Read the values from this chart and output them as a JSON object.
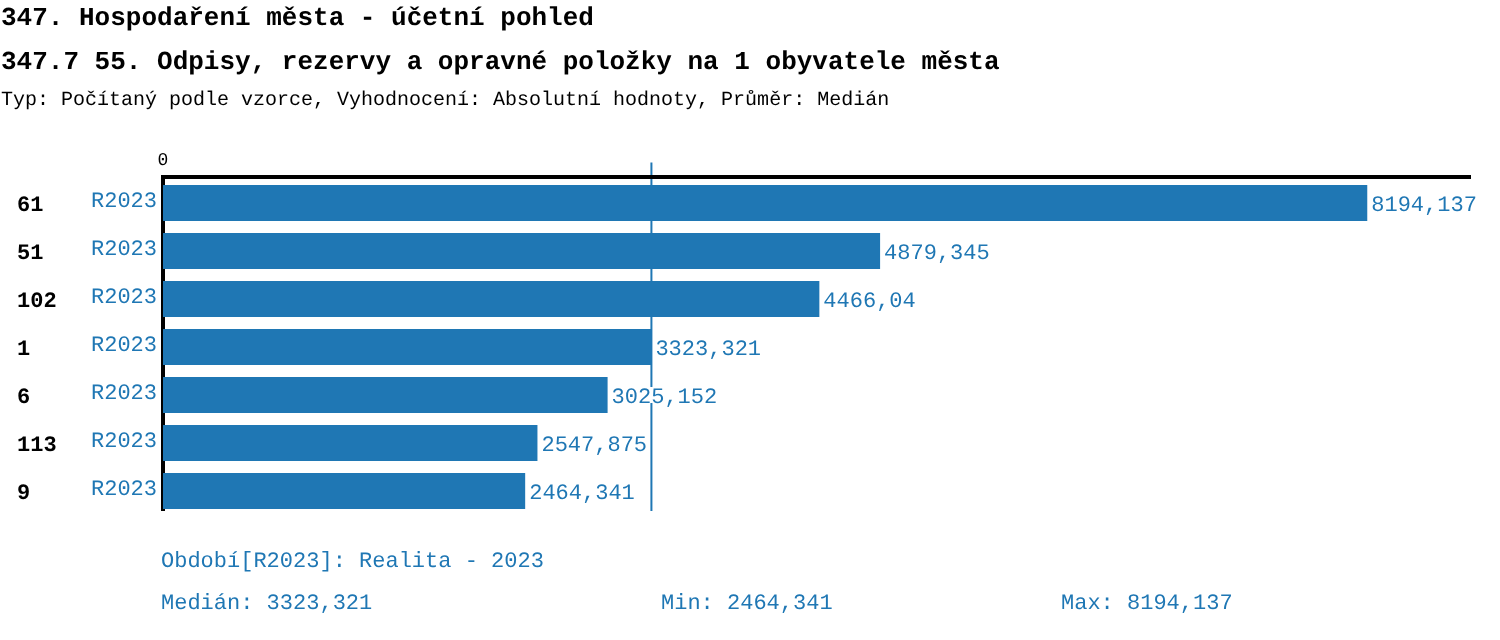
{
  "chart_data": {
    "type": "bar",
    "orientation": "horizontal",
    "title": "347. Hospodaření města - účetní pohled",
    "subtitle": "347.7 55. Odpisy, rezervy a opravné položky na 1 obyvatele města",
    "annotations": [
      "Typ: Počítaný podle vzorce, Vyhodnocení: Absolutní hodnoty, Průměr: Medián",
      "0",
      "Období[R2023]: Realita - 2023",
      "Medián: 3323,321",
      "Min: 2464,341",
      "Max: 8194,137"
    ],
    "categories": [
      "61",
      "51",
      "102",
      "1",
      "6",
      "113",
      "9"
    ],
    "series": [
      {
        "name": "R2023",
        "color": "#1f77b4",
        "values": [
          8194.137,
          4879.345,
          4466.04,
          3323.321,
          3025.152,
          2547.875,
          2464.341
        ],
        "value_labels": [
          "8194,137",
          "4879,345",
          "4466,04",
          "3323,321",
          "3025,152",
          "2547,875",
          "2464,341"
        ]
      }
    ],
    "xlim": [
      0,
      8900
    ],
    "ref_lines": [
      {
        "axis": "x",
        "value": 3323.321,
        "color": "#1f77b4"
      }
    ]
  }
}
